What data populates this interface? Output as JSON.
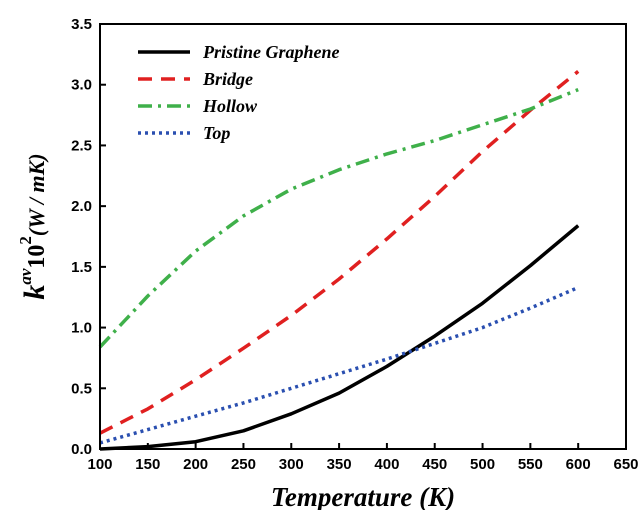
{
  "chart_data": {
    "type": "line",
    "xlabel": "Temperature (K)",
    "ylabel": {
      "base": "k",
      "superscript": "av",
      "middle": "10",
      "middle_superscript": "2",
      "unit": "(W / mK)"
    },
    "xlim": [
      100,
      650
    ],
    "ylim": [
      0,
      3.5
    ],
    "x_ticks": [
      100,
      150,
      200,
      250,
      300,
      350,
      400,
      450,
      500,
      550,
      600,
      650
    ],
    "x_tick_labels": [
      "100",
      "150",
      "200",
      "250",
      "300",
      "350",
      "400",
      "450",
      "500",
      "550",
      "600",
      "650"
    ],
    "y_ticks": [
      0,
      0.5,
      1.0,
      1.5,
      2.0,
      2.5,
      3.0,
      3.5
    ],
    "y_tick_labels": [
      "0.0",
      "0.5",
      "1.0",
      "1.5",
      "2.0",
      "2.5",
      "3.0",
      "3.5"
    ],
    "grid": false,
    "legend_position": "top-left",
    "series": [
      {
        "name": "Pristine Graphene",
        "color": "#000000",
        "dash": "solid",
        "x": [
          100,
          150,
          200,
          250,
          300,
          350,
          400,
          450,
          500,
          550,
          600
        ],
        "y": [
          0.0,
          0.02,
          0.06,
          0.15,
          0.29,
          0.46,
          0.68,
          0.93,
          1.2,
          1.51,
          1.84
        ]
      },
      {
        "name": "Bridge",
        "color": "#e02020",
        "dash": "dash",
        "x": [
          100,
          150,
          200,
          250,
          300,
          350,
          400,
          450,
          500,
          550,
          600
        ],
        "y": [
          0.13,
          0.33,
          0.57,
          0.83,
          1.1,
          1.4,
          1.73,
          2.08,
          2.45,
          2.79,
          3.11
        ]
      },
      {
        "name": "Hollow",
        "color": "#3fb04a",
        "dash": "dashdot",
        "x": [
          100,
          150,
          200,
          250,
          300,
          350,
          400,
          450,
          500,
          550,
          600
        ],
        "y": [
          0.84,
          1.26,
          1.63,
          1.92,
          2.14,
          2.3,
          2.43,
          2.54,
          2.67,
          2.8,
          2.96
        ]
      },
      {
        "name": "Top",
        "color": "#2a4fb0",
        "dash": "dot",
        "x": [
          100,
          150,
          200,
          250,
          300,
          350,
          400,
          450,
          500,
          550,
          600
        ],
        "y": [
          0.05,
          0.16,
          0.27,
          0.38,
          0.5,
          0.62,
          0.74,
          0.87,
          1.0,
          1.16,
          1.33
        ]
      }
    ]
  }
}
